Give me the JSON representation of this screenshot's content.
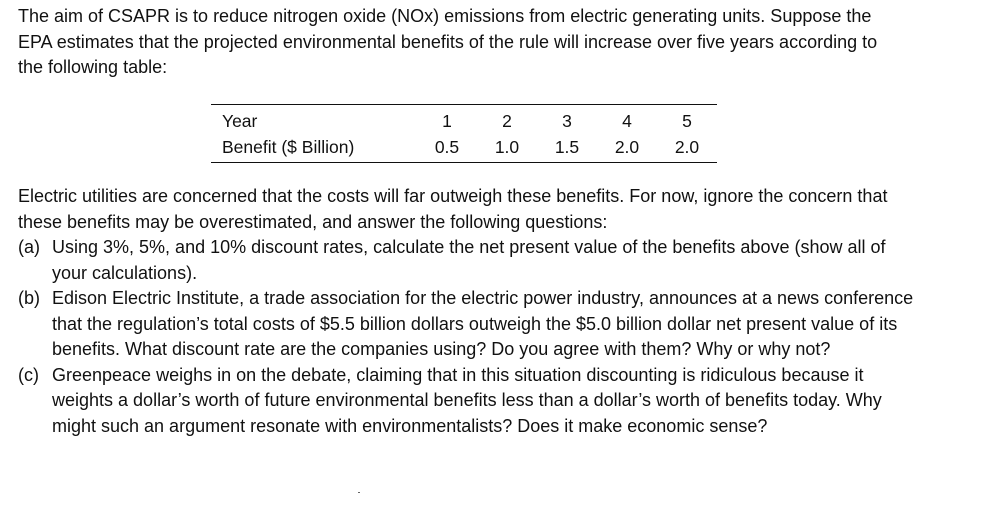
{
  "intro": "The aim of CSAPR is to reduce nitrogen oxide (NOx) emissions from electric generating units. Suppose the EPA estimates that the projected environmental benefits of the rule will increase over five years according to the following table:",
  "table": {
    "row_header_year": "Year",
    "row_header_benefit": "Benefit ($ Billion)",
    "years": [
      "1",
      "2",
      "3",
      "4",
      "5"
    ],
    "benefits": [
      "0.5",
      "1.0",
      "1.5",
      "2.0",
      "2.0"
    ]
  },
  "after_table": "Electric utilities are concerned that the costs will far outweigh these benefits. For now, ignore the concern that these benefits may be overestimated, and answer the following questions:",
  "questions": [
    {
      "label": "(a)",
      "text": "Using 3%, 5%, and 10% discount rates, calculate the net present value of the benefits above (show all of your calculations)."
    },
    {
      "label": "(b)",
      "text": "Edison Electric Institute, a trade association for the electric power industry, announces at a news conference that the regulation’s total costs of $5.5 billion dollars outweigh the $5.0 billion dollar net present value of its benefits. What discount rate are the companies using? Do you agree with them? Why or why not?"
    },
    {
      "label": "(c)",
      "text": "Greenpeace weighs in on the debate, claiming that in this situation discounting is ridiculous because it weights a dollar’s worth of future environmental benefits less than a dollar’s worth of benefits today. Why might such an argument resonate with environmentalists? Does it make economic sense?"
    }
  ]
}
